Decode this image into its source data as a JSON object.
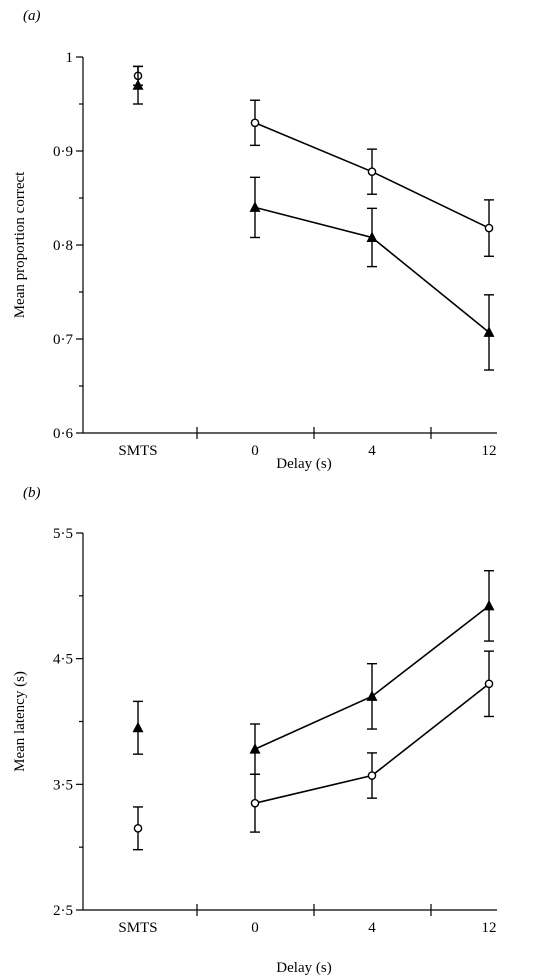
{
  "chart_data": [
    {
      "type": "line",
      "panel_label": "(a)",
      "title": "",
      "xlabel": "Delay (s)",
      "ylabel": "Mean proportion correct",
      "categories": [
        "SMTS",
        "0",
        "4",
        "12"
      ],
      "yticks": [
        "0·6",
        "0·7",
        "0·8",
        "0·9",
        "1"
      ],
      "ylim": [
        0.6,
        1.0
      ],
      "series": [
        {
          "marker": "open-circle",
          "values": [
            0.98,
            0.93,
            0.878,
            0.818
          ],
          "error": [
            0.01,
            0.024,
            0.024,
            0.03
          ],
          "connected_from_index": 1
        },
        {
          "marker": "filled-triangle",
          "values": [
            0.97,
            0.84,
            0.808,
            0.707
          ],
          "error": [
            0.02,
            0.032,
            0.031,
            0.04
          ],
          "connected_from_index": 1
        }
      ]
    },
    {
      "type": "line",
      "panel_label": "(b)",
      "title": "",
      "xlabel": "Delay (s)",
      "ylabel": "Mean latency (s)",
      "categories": [
        "SMTS",
        "0",
        "4",
        "12"
      ],
      "yticks": [
        "2·5",
        "3·5",
        "4·5",
        "5·5"
      ],
      "ylim": [
        2.5,
        5.5
      ],
      "series": [
        {
          "marker": "open-circle",
          "values": [
            3.15,
            3.35,
            3.57,
            4.3
          ],
          "error": [
            0.17,
            0.23,
            0.18,
            0.26
          ],
          "connected_from_index": 1
        },
        {
          "marker": "filled-triangle",
          "values": [
            3.95,
            3.78,
            4.2,
            4.92
          ],
          "error": [
            0.21,
            0.2,
            0.26,
            0.28
          ],
          "connected_from_index": 1
        }
      ]
    }
  ]
}
